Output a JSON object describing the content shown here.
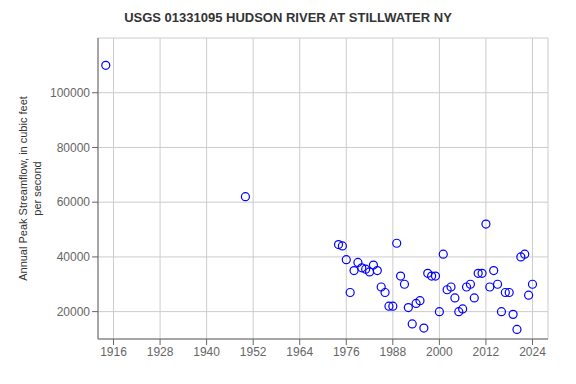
{
  "chart_data": {
    "type": "scatter",
    "title": "USGS 01331095 HUDSON RIVER AT STILLWATER NY",
    "ylabel": "Annual Peak Streamflow, in cubic feet\nper second",
    "x": [
      1914,
      1950,
      1974,
      1975,
      1976,
      1977,
      1978,
      1979,
      1980,
      1981,
      1982,
      1983,
      1984,
      1985,
      1986,
      1987,
      1988,
      1989,
      1990,
      1991,
      1992,
      1993,
      1994,
      1995,
      1996,
      1997,
      1998,
      1999,
      2000,
      2001,
      2002,
      2003,
      2004,
      2005,
      2006,
      2007,
      2008,
      2009,
      2010,
      2011,
      2012,
      2013,
      2014,
      2015,
      2016,
      2017,
      2018,
      2019,
      2020,
      2021,
      2022,
      2023,
      2024
    ],
    "values": [
      110000,
      62000,
      44500,
      44000,
      39000,
      27000,
      35000,
      38000,
      36000,
      35500,
      34500,
      37000,
      35000,
      29000,
      27000,
      22000,
      22000,
      45000,
      33000,
      30000,
      21500,
      15500,
      23000,
      24000,
      14000,
      34000,
      33000,
      33000,
      20000,
      41000,
      28000,
      29000,
      25000,
      20000,
      21000,
      29000,
      30000,
      25000,
      34000,
      34000,
      52000,
      29000,
      35000,
      30000,
      20000,
      27000,
      27000,
      19000,
      13500,
      40000,
      41000,
      26000,
      30000
    ],
    "xlim": [
      1912,
      2028
    ],
    "ylim": [
      10000,
      120000
    ],
    "xticks": [
      1916,
      1928,
      1940,
      1952,
      1964,
      1976,
      1988,
      2000,
      2012,
      2024
    ],
    "yticks": [
      20000,
      40000,
      60000,
      80000,
      100000
    ],
    "color": "#0000ff",
    "marker": "open_circle",
    "grid": true
  }
}
